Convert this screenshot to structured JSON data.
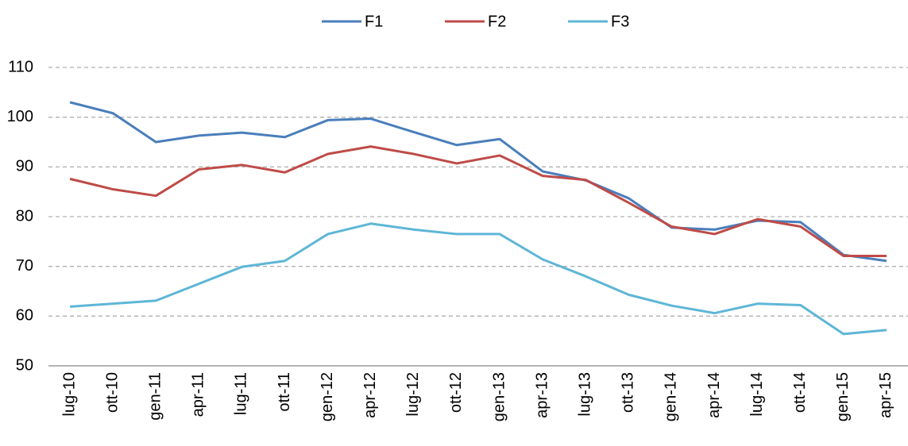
{
  "chart_data": {
    "type": "line",
    "categories": [
      "lug-10",
      "ott-10",
      "gen-11",
      "apr-11",
      "lug-11",
      "ott-11",
      "gen-12",
      "apr-12",
      "lug-12",
      "ott-12",
      "gen-13",
      "apr-13",
      "lug-13",
      "ott-13",
      "gen-14",
      "apr-14",
      "lug-14",
      "ott-14",
      "gen-15",
      "apr-15"
    ],
    "series": [
      {
        "name": "F1",
        "color": "#4a7ebb",
        "values": [
          103,
          100.8,
          95,
          96.3,
          96.9,
          96,
          99.4,
          99.7,
          97,
          94.4,
          95.6,
          89.1,
          87.3,
          83.7,
          77.8,
          77.4,
          79.2,
          78.9,
          72.3,
          71.1
        ]
      },
      {
        "name": "F2",
        "color": "#be4b48",
        "values": [
          87.6,
          85.5,
          84.2,
          89.5,
          90.4,
          88.9,
          92.6,
          94.1,
          92.6,
          90.7,
          92.3,
          88.2,
          87.4,
          82.8,
          78,
          76.5,
          79.5,
          78,
          72.1,
          72.1
        ]
      },
      {
        "name": "F3",
        "color": "#5eb6d6",
        "values": [
          61.9,
          62.5,
          63.1,
          66.5,
          69.9,
          71.1,
          76.5,
          78.6,
          77.4,
          76.5,
          76.5,
          71.4,
          68,
          64.3,
          62.1,
          60.6,
          62.5,
          62.2,
          56.4,
          57.2
        ]
      }
    ],
    "ylim": [
      50,
      110
    ],
    "yticks": [
      50,
      60,
      70,
      80,
      90,
      100,
      110
    ],
    "grid": true,
    "legend": "top"
  }
}
